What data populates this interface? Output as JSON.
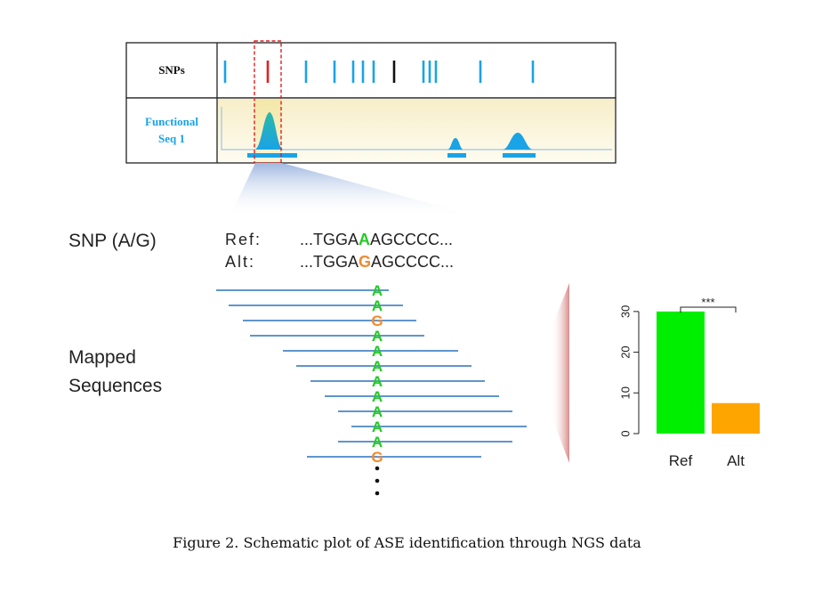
{
  "track_panel": {
    "snps_label": "SNPs",
    "functional_label_line1": "Functional",
    "functional_label_line2": "Seq 1",
    "snp_positions": [
      253,
      301,
      344,
      376,
      397,
      408,
      420,
      443,
      476,
      483,
      490,
      540,
      599
    ],
    "highlight_snp_index": 1,
    "black_snp_index": 7,
    "colors": {
      "snp": "#1aa3e6",
      "highlight": "#e02020",
      "black": "#111111",
      "peak": "#1aa3e6",
      "highlight_peak": "#2aa9a0"
    }
  },
  "sequence": {
    "snp_label": "SNP (A/G)",
    "ref_label": "Ref:",
    "alt_label": "Alt:",
    "ref_prefix": "...TGGA",
    "ref_allele": "A",
    "ref_suffix": "AGCCCC...",
    "alt_prefix": "...TGGA",
    "alt_allele": "G",
    "alt_suffix": "AGCCCC...",
    "ref_color": "#22cc22",
    "alt_color": "#f08a30"
  },
  "mapped": {
    "label_line1": "Mapped",
    "label_line2": "Sequences",
    "reads": [
      "A",
      "A",
      "G",
      "A",
      "A",
      "A",
      "A",
      "A",
      "A",
      "A",
      "A",
      "G"
    ],
    "read_color": "#4a86c8"
  },
  "chart_data": {
    "type": "bar",
    "categories": [
      "Ref",
      "Alt"
    ],
    "values": [
      30,
      7.5
    ],
    "colors": [
      "#00ee00",
      "#ffa500"
    ],
    "yticks": [
      "0",
      "10",
      "20",
      "30"
    ],
    "ylim": [
      0,
      35
    ],
    "significance": "***"
  },
  "caption": "Figure 2. Schematic plot of ASE identification through NGS data"
}
